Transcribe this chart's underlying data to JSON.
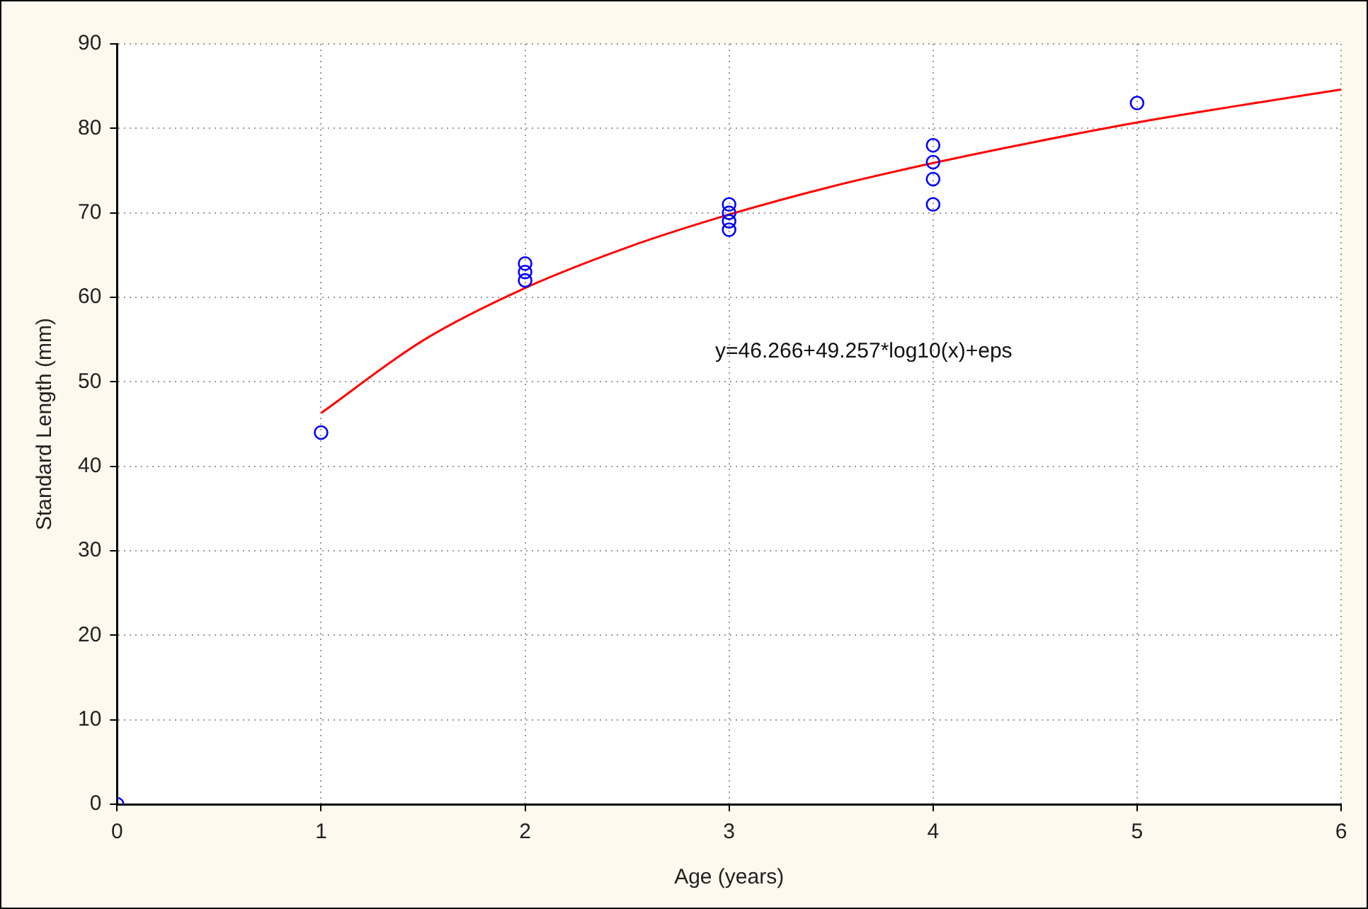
{
  "chart_data": {
    "type": "scatter",
    "xlabel": "Age (years)",
    "ylabel": "Standard Length (mm)",
    "xlim": [
      0,
      6
    ],
    "xticks": [
      0,
      1,
      2,
      3,
      4,
      5,
      6
    ],
    "ylim": [
      0,
      90
    ],
    "yticks": [
      0,
      10,
      20,
      30,
      40,
      50,
      60,
      70,
      80,
      90
    ],
    "grid": true,
    "legend": false,
    "series": [
      {
        "type": "scatter",
        "color": "#0000ff",
        "marker": "circle",
        "x": [
          0,
          1,
          2,
          2,
          2,
          3,
          3,
          3,
          3,
          4,
          4,
          4,
          4,
          5
        ],
        "values": [
          0,
          44,
          64,
          63,
          62,
          71,
          70,
          69,
          68,
          78,
          76,
          74,
          71,
          83
        ]
      },
      {
        "type": "line",
        "color": "#ff0000",
        "marker": "none",
        "line_style": "solid",
        "x": [
          1,
          1.5,
          2,
          2.5,
          3,
          3.5,
          4,
          4.5,
          5,
          5.5,
          6
        ],
        "values": [
          46.3,
          54.9,
          61.1,
          65.9,
          69.8,
          73.1,
          75.9,
          78.4,
          80.7,
          82.7,
          84.6
        ]
      }
    ],
    "annotations": [
      "y=46.266+49.257*log10(x)+eps"
    ]
  }
}
